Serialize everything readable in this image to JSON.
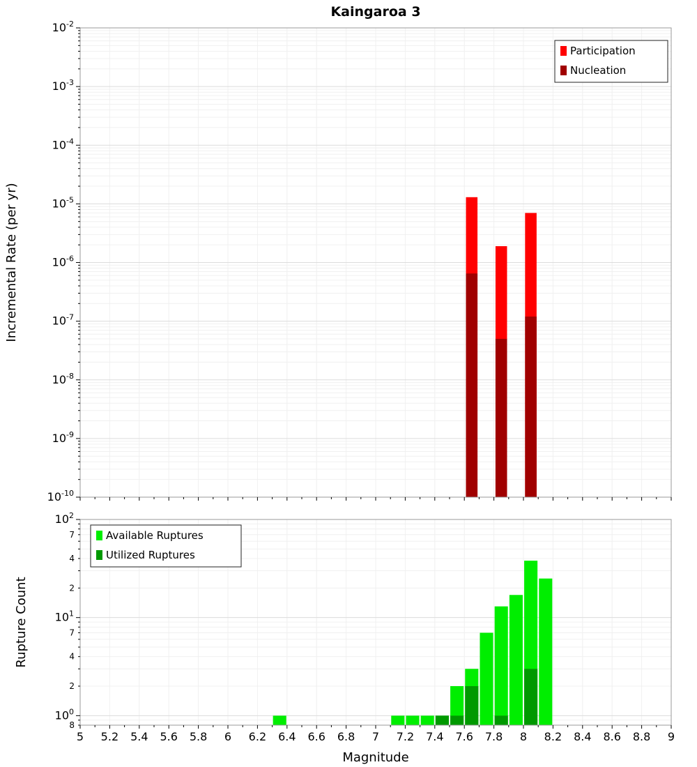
{
  "title": "Kaingaroa 3",
  "chart_data": [
    {
      "type": "bar",
      "id": "rate",
      "ylabel": "Incremental Rate (per yr)",
      "yscale": "log",
      "ylim": [
        1e-10,
        0.01
      ],
      "xlim": [
        5,
        9
      ],
      "bin_width": 0.1,
      "grid": true,
      "xticks": [
        5,
        5.2,
        5.4,
        5.6,
        5.8,
        6,
        6.2,
        6.4,
        6.6,
        6.8,
        7,
        7.2,
        7.4,
        7.6,
        7.8,
        8,
        8.2,
        8.4,
        8.6,
        8.8,
        9
      ],
      "legend": {
        "position": "top-right",
        "entries": [
          {
            "label": "Participation",
            "color": "#ff0000"
          },
          {
            "label": "Nucleation",
            "color": "#a00000"
          }
        ]
      },
      "series": [
        {
          "name": "Participation",
          "color": "#ff0000",
          "x": [
            7.65,
            7.85,
            8.05
          ],
          "values": [
            1.3e-05,
            1.9e-06,
            7e-06
          ]
        },
        {
          "name": "Nucleation",
          "color": "#a00000",
          "x": [
            7.65,
            7.85,
            8.05
          ],
          "values": [
            6.5e-07,
            5e-08,
            1.2e-07
          ]
        }
      ]
    },
    {
      "type": "bar",
      "id": "count",
      "ylabel": "Rupture Count",
      "xlabel": "Magnitude",
      "yscale": "log",
      "ylim": [
        0.8,
        100
      ],
      "xlim": [
        5,
        9
      ],
      "bin_width": 0.1,
      "grid": true,
      "xticks": [
        5,
        5.2,
        5.4,
        5.6,
        5.8,
        6,
        6.2,
        6.4,
        6.6,
        6.8,
        7,
        7.2,
        7.4,
        7.6,
        7.8,
        8,
        8.2,
        8.4,
        8.6,
        8.8,
        9
      ],
      "minor_tick_labels": [
        70,
        40,
        20,
        7,
        4,
        2,
        0.8
      ],
      "legend": {
        "position": "top-left",
        "entries": [
          {
            "label": "Available Ruptures",
            "color": "#00ee00"
          },
          {
            "label": "Utilized Ruptures",
            "color": "#009900"
          }
        ]
      },
      "series": [
        {
          "name": "Available Ruptures",
          "color": "#00ee00",
          "x": [
            6.35,
            7.15,
            7.25,
            7.35,
            7.45,
            7.55,
            7.65,
            7.75,
            7.85,
            7.95,
            8.05,
            8.15
          ],
          "values": [
            1,
            1,
            1,
            1,
            1,
            2,
            3,
            7,
            13,
            17,
            38,
            25
          ]
        },
        {
          "name": "Utilized Ruptures",
          "color": "#009900",
          "x": [
            7.45,
            7.55,
            7.65,
            7.85,
            8.05
          ],
          "values": [
            1,
            1,
            2,
            1,
            3
          ]
        }
      ]
    }
  ]
}
